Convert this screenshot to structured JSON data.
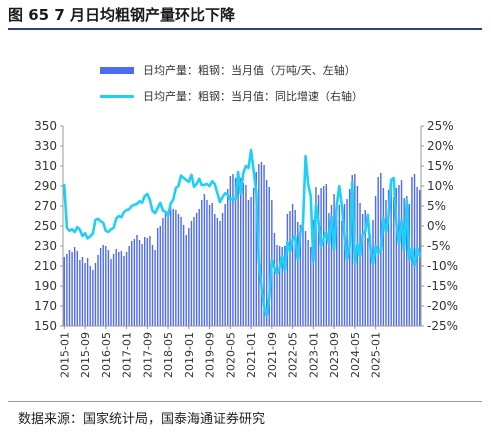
{
  "title": "图 65 7 月日均粗钢产量环比下降",
  "legend": {
    "bar_label": "日均产量：粗钢：当月值（万吨/天、左轴）",
    "line_label": "日均产量：粗钢：当月值：同比增速（右轴）"
  },
  "source": "数据来源：国家统计局，国泰海通证券研究",
  "colors": {
    "bar": "#4e6cf0",
    "line": "#1fd0f5",
    "axis": "#999999"
  },
  "chart_data": {
    "type": "bar",
    "title": "图 65 7 月日均粗钢产量环比下降",
    "x_tick_labels": [
      "2015-01",
      "2015-09",
      "2016-05",
      "2017-01",
      "2017-09",
      "2018-05",
      "2019-01",
      "2019-09",
      "2020-05",
      "2021-01",
      "2021-09",
      "2022-05",
      "2023-01",
      "2023-09",
      "2024-05",
      "2025-01"
    ],
    "y_left": {
      "ticks": [
        150,
        170,
        190,
        210,
        230,
        250,
        270,
        290,
        310,
        330,
        350
      ],
      "ylim": [
        150,
        350
      ]
    },
    "y_right": {
      "ticks": [
        "25%",
        "20%",
        "15%",
        "10%",
        "5%",
        "0%",
        "-5%",
        "-10%",
        "-15%",
        "-20%",
        "-25%"
      ],
      "ylim": [
        -25,
        25
      ]
    },
    "start_month": "2015-01",
    "series": [
      {
        "name": "日均产量：粗钢：当月值（万吨/天、左轴）",
        "type": "bar",
        "axis": "left",
        "values": [
          219,
          222,
          226,
          224,
          229,
          225,
          216,
          219,
          213,
          218,
          210,
          206,
          213,
          221,
          228,
          231,
          230,
          226,
          217,
          222,
          227,
          224,
          225,
          220,
          224,
          230,
          235,
          237,
          241,
          236,
          232,
          239,
          238,
          240,
          231,
          226,
          248,
          250,
          258,
          262,
          265,
          269,
          267,
          266,
          262,
          259,
          251,
          241,
          248,
          255,
          259,
          263,
          267,
          276,
          282,
          276,
          271,
          273,
          262,
          258,
          255,
          263,
          272,
          287,
          300,
          302,
          298,
          294,
          298,
          293,
          291,
          276,
          279,
          288,
          304,
          312,
          314,
          311,
          296,
          289,
          276,
          243,
          231,
          230,
          229,
          230,
          262,
          265,
          272,
          266,
          254,
          251,
          258,
          245,
          236,
          229,
          256,
          289,
          281,
          288,
          290,
          292,
          263,
          271,
          282,
          257,
          271,
          255,
          272,
          277,
          287,
          301,
          302,
          290,
          273,
          262,
          266,
          238,
          241,
          256,
          280,
          299,
          303,
          288,
          276,
          286,
          290,
          279,
          288,
          291,
          296,
          278,
          280,
          272,
          299,
          302,
          289,
          286
        ]
      },
      {
        "name": "日均产量：粗钢：当月值：同比增速（右轴）",
        "type": "line",
        "axis": "right",
        "values": [
          10.2,
          -0.5,
          -1.2,
          -0.8,
          -1.5,
          -0.3,
          -0.9,
          -2.5,
          -1.8,
          -3.1,
          -2.6,
          -1.9,
          1.5,
          1.8,
          1.2,
          0.8,
          -1.2,
          -1.5,
          -0.8,
          -0.5,
          1.8,
          2.5,
          2.2,
          3.5,
          4.0,
          4.2,
          5.0,
          5.3,
          5.5,
          6.2,
          5.8,
          7.5,
          8.0,
          6.5,
          3.8,
          3.2,
          4.5,
          5.8,
          3.9,
          3.5,
          2.5,
          5.6,
          6.6,
          9.5,
          10.0,
          12.6,
          12.0,
          11.5,
          11.0,
          12.8,
          9.8,
          10.5,
          11.8,
          10.2,
          10.3,
          10.5,
          10.0,
          11.2,
          10.5,
          8.2,
          6.0,
          7.2,
          8.2,
          7.8,
          6.5,
          7.0,
          6.5,
          13.5,
          8.0,
          13.2,
          15.0,
          14.5,
          19.0,
          13.8,
          8.5,
          -9.0,
          -15.0,
          -20.0,
          -22.5,
          -18.0,
          -8.5,
          -10.5,
          -12.0,
          -10.5,
          -7.5,
          -11.2,
          -4.0,
          -6.5,
          -3.5,
          -2.5,
          -8.5,
          -1.5,
          0.5,
          17.5,
          10.5,
          7.5,
          -9.0,
          5.2,
          1.0,
          -5.0,
          -3.0,
          -1.5,
          -4.5,
          2.5,
          -6.0,
          5.0,
          10.0,
          5.0,
          -2.5,
          -8.5,
          -5.0,
          11.0,
          -9.5,
          -4.5,
          -7.5,
          -2.0,
          -1.5,
          2.8,
          -5.5,
          -9.5,
          -5.0,
          -6.8,
          -6.0,
          2.0,
          -1.5,
          2.5,
          11.5,
          12.0,
          0.5,
          -4.5,
          1.5,
          -6.0,
          6.5,
          -8.5,
          -5.5,
          -10.0,
          -5.5,
          -7.5
        ]
      }
    ]
  }
}
